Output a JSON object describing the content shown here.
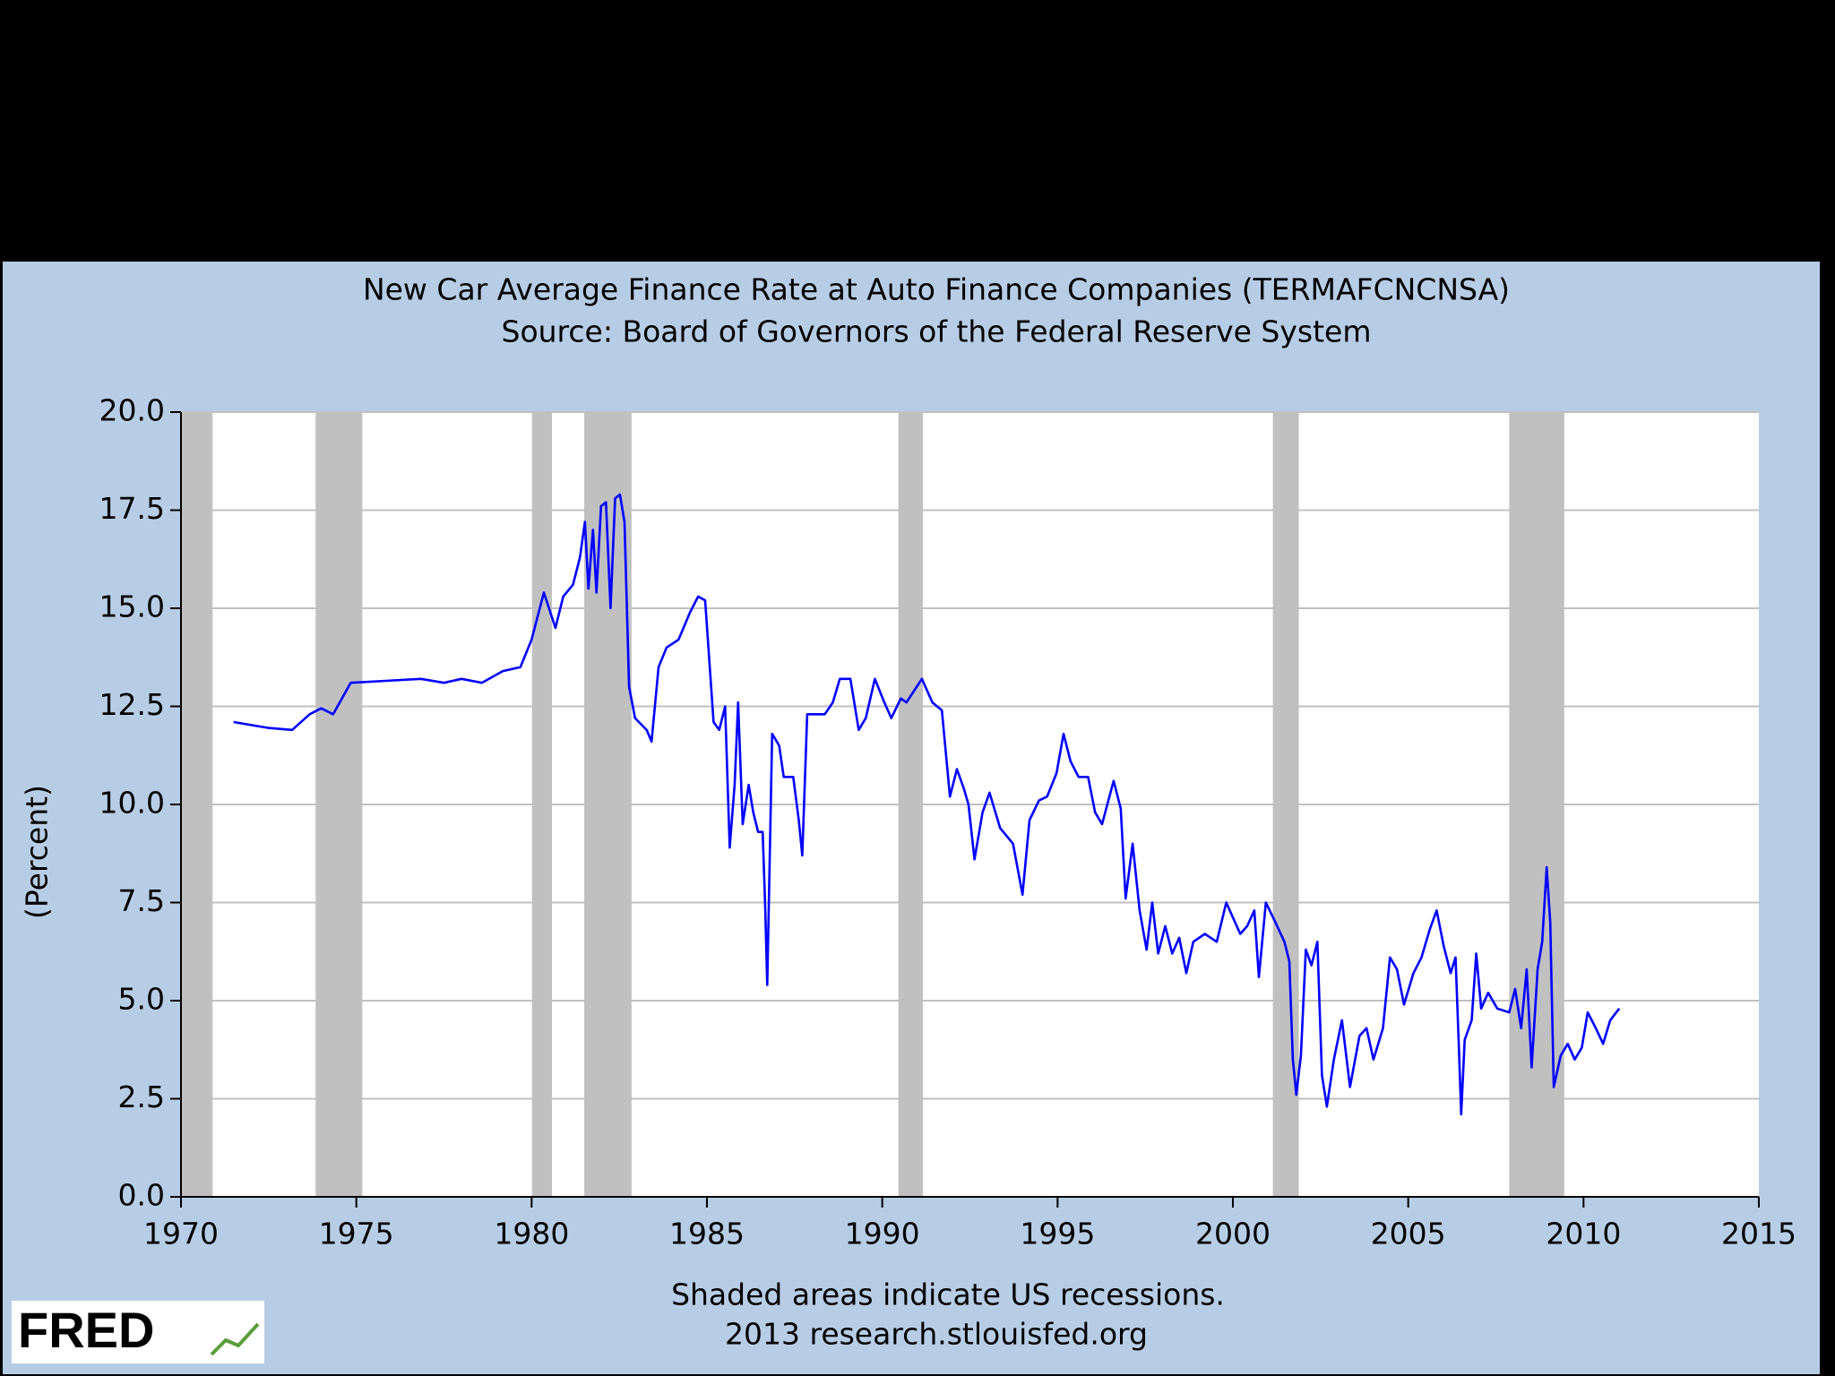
{
  "chart_data": {
    "type": "line",
    "title": "New Car Average Finance Rate at Auto Finance Companies (TERMAFCNCNSA)",
    "subtitle": "Source: Board of Governors of the Federal Reserve System",
    "y_label": "(Percent)",
    "footnote": "Shaded areas indicate US recessions.",
    "source": "2013 research.stlouisfed.org",
    "logo": "FRED",
    "color": "#0000ff",
    "recession_color": "#c0c0c0",
    "grid": true,
    "xlim": [
      1970,
      2015
    ],
    "xticks": [
      1970,
      1975,
      1980,
      1985,
      1990,
      1995,
      2000,
      2005,
      2010,
      2015
    ],
    "ylim": [
      0,
      20
    ],
    "yticks": [
      {
        "value": 0,
        "label": "0.0"
      },
      {
        "value": 2.5,
        "label": "2.5"
      },
      {
        "value": 5,
        "label": "5.0"
      },
      {
        "value": 7.5,
        "label": "7.5"
      },
      {
        "value": 10,
        "label": "10.0"
      },
      {
        "value": 12.5,
        "label": "12.5"
      },
      {
        "value": 15,
        "label": "15.0"
      },
      {
        "value": 17.5,
        "label": "17.5"
      },
      {
        "value": 20,
        "label": "20.0"
      }
    ],
    "recessions": [
      [
        1970,
        1970.9
      ],
      [
        1973.84,
        1975.17
      ],
      [
        1980.01,
        1980.58
      ],
      [
        1981.5,
        1982.85
      ],
      [
        1990.46,
        1991.16
      ],
      [
        2001.14,
        2001.88
      ],
      [
        2007.88,
        2009.45
      ]
    ],
    "x": [
      1971.5,
      1972.5,
      1973.17,
      1973.67,
      1974.0,
      1974.34,
      1974.84,
      1975.84,
      1976.84,
      1977.5,
      1978.0,
      1978.58,
      1979.18,
      1979.68,
      1980.0,
      1980.35,
      1980.68,
      1980.9,
      1981.18,
      1981.38,
      1981.52,
      1981.62,
      1981.75,
      1981.85,
      1981.98,
      1982.12,
      1982.25,
      1982.38,
      1982.52,
      1982.65,
      1982.78,
      1982.95,
      1983.28,
      1983.42,
      1983.62,
      1983.85,
      1984.19,
      1984.52,
      1984.75,
      1984.95,
      1985.19,
      1985.35,
      1985.52,
      1985.65,
      1985.79,
      1985.89,
      1986.02,
      1986.19,
      1986.32,
      1986.46,
      1986.59,
      1986.66,
      1986.72,
      1986.86,
      1987.06,
      1987.19,
      1987.46,
      1987.62,
      1987.72,
      1987.86,
      1988.36,
      1988.59,
      1988.79,
      1989.09,
      1989.33,
      1989.53,
      1989.79,
      1990.06,
      1990.26,
      1990.53,
      1990.69,
      1991.13,
      1991.43,
      1991.7,
      1991.93,
      1992.13,
      1992.33,
      1992.46,
      1992.63,
      1992.86,
      1993.06,
      1993.36,
      1993.73,
      1994.0,
      1994.2,
      1994.47,
      1994.7,
      1994.97,
      1995.17,
      1995.37,
      1995.6,
      1995.87,
      1996.07,
      1996.27,
      1996.6,
      1996.8,
      1996.94,
      1997.14,
      1997.34,
      1997.54,
      1997.7,
      1997.87,
      1998.07,
      1998.27,
      1998.47,
      1998.67,
      1998.87,
      1999.2,
      1999.54,
      1999.81,
      2000.01,
      2000.21,
      2000.41,
      2000.61,
      2000.74,
      2000.94,
      2001.21,
      2001.47,
      2001.61,
      2001.71,
      2001.81,
      2001.94,
      2002.08,
      2002.24,
      2002.41,
      2002.54,
      2002.68,
      2002.88,
      2003.11,
      2003.34,
      2003.61,
      2003.81,
      2004.01,
      2004.28,
      2004.48,
      2004.68,
      2004.88,
      2005.15,
      2005.38,
      2005.61,
      2005.81,
      2006.01,
      2006.21,
      2006.35,
      2006.45,
      2006.51,
      2006.61,
      2006.81,
      2006.94,
      2007.08,
      2007.28,
      2007.54,
      2007.88,
      2008.05,
      2008.22,
      2008.38,
      2008.52,
      2008.69,
      2008.82,
      2008.95,
      2009.05,
      2009.15,
      2009.35,
      2009.55,
      2009.75,
      2009.95,
      2010.12,
      2010.35,
      2010.56,
      2010.76,
      2011.02
    ],
    "values": [
      12.1,
      11.95,
      11.9,
      12.3,
      12.45,
      12.3,
      13.1,
      13.15,
      13.2,
      13.1,
      13.2,
      13.1,
      13.4,
      13.5,
      14.2,
      15.4,
      14.5,
      15.3,
      15.6,
      16.3,
      17.2,
      15.5,
      17.0,
      15.4,
      17.6,
      17.7,
      15.0,
      17.8,
      17.9,
      17.2,
      13.0,
      12.2,
      11.9,
      11.6,
      13.5,
      14.0,
      14.2,
      14.9,
      15.3,
      15.2,
      12.1,
      11.9,
      12.5,
      8.9,
      10.5,
      12.6,
      9.5,
      10.5,
      9.8,
      9.3,
      9.3,
      7.4,
      5.4,
      11.8,
      11.5,
      10.7,
      10.7,
      9.6,
      8.7,
      12.3,
      12.3,
      12.6,
      13.2,
      13.2,
      11.9,
      12.2,
      13.2,
      12.6,
      12.2,
      12.7,
      12.6,
      13.2,
      12.6,
      12.4,
      10.2,
      10.9,
      10.4,
      10.0,
      8.6,
      9.8,
      10.3,
      9.4,
      9.0,
      7.7,
      9.6,
      10.1,
      10.2,
      10.8,
      11.8,
      11.1,
      10.7,
      10.7,
      9.8,
      9.5,
      10.6,
      9.9,
      7.6,
      9.0,
      7.3,
      6.3,
      7.5,
      6.2,
      6.9,
      6.2,
      6.6,
      5.7,
      6.5,
      6.7,
      6.5,
      7.5,
      7.1,
      6.7,
      6.9,
      7.3,
      5.6,
      7.5,
      7.0,
      6.5,
      6.0,
      3.5,
      2.6,
      3.6,
      6.3,
      5.9,
      6.5,
      3.1,
      2.3,
      3.5,
      4.5,
      2.8,
      4.1,
      4.3,
      3.5,
      4.3,
      6.1,
      5.8,
      4.9,
      5.7,
      6.1,
      6.8,
      7.3,
      6.4,
      5.7,
      6.1,
      3.7,
      2.1,
      4.0,
      4.5,
      6.2,
      4.8,
      5.2,
      4.8,
      4.7,
      5.3,
      4.3,
      5.8,
      3.3,
      5.8,
      6.5,
      8.4,
      7.0,
      2.8,
      3.6,
      3.9,
      3.5,
      3.8,
      4.7,
      4.3,
      3.9,
      4.5,
      4.8
    ]
  }
}
